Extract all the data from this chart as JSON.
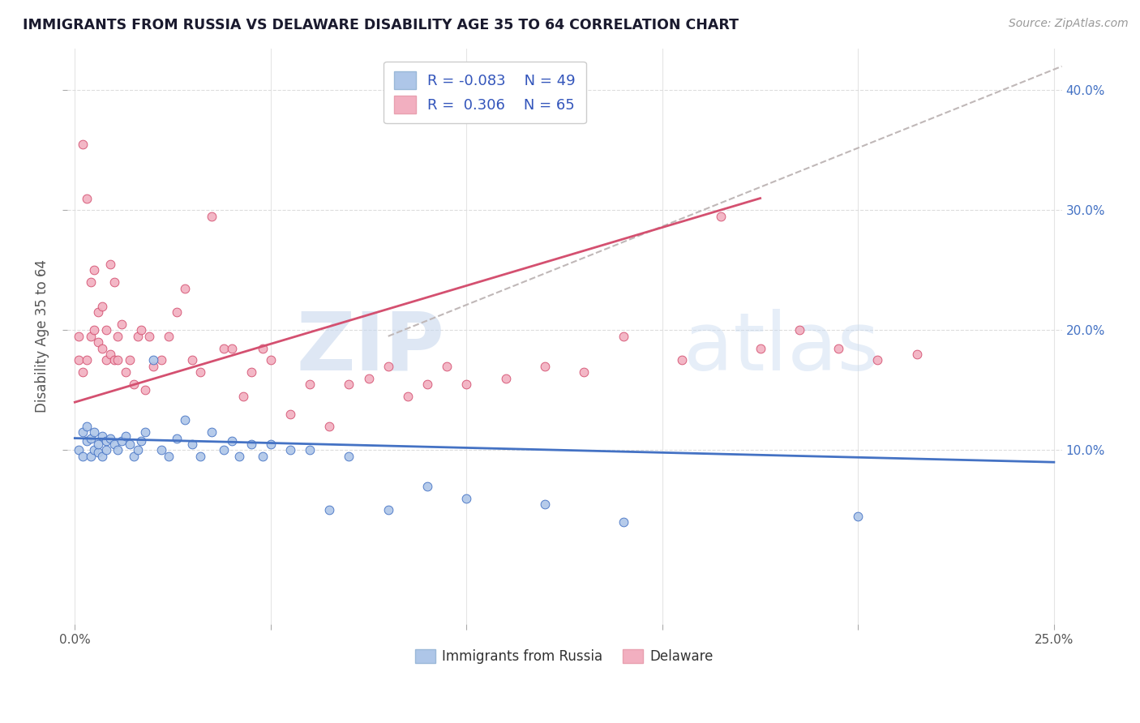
{
  "title": "IMMIGRANTS FROM RUSSIA VS DELAWARE DISABILITY AGE 35 TO 64 CORRELATION CHART",
  "source": "Source: ZipAtlas.com",
  "ylabel": "Disability Age 35 to 64",
  "xlim": [
    -0.002,
    0.252
  ],
  "ylim": [
    -0.045,
    0.435
  ],
  "xtick_positions": [
    0.0,
    0.05,
    0.1,
    0.15,
    0.2,
    0.25
  ],
  "xticklabels": [
    "0.0%",
    "",
    "",
    "",
    "",
    "25.0%"
  ],
  "ytick_positions": [
    0.1,
    0.2,
    0.3,
    0.4
  ],
  "yticklabels_right": [
    "10.0%",
    "20.0%",
    "30.0%",
    "40.0%"
  ],
  "color_blue": "#aec6e8",
  "color_pink": "#f2afc0",
  "line_blue": "#4472c4",
  "line_pink": "#d45070",
  "line_gray": "#c0b8b8",
  "text_color_title": "#1a1a2e",
  "text_color_source": "#999999",
  "legend_color": "#3355bb",
  "blue_scatter_x": [
    0.001,
    0.002,
    0.002,
    0.003,
    0.003,
    0.004,
    0.004,
    0.005,
    0.005,
    0.006,
    0.006,
    0.007,
    0.007,
    0.008,
    0.008,
    0.009,
    0.01,
    0.011,
    0.012,
    0.013,
    0.014,
    0.015,
    0.016,
    0.017,
    0.018,
    0.02,
    0.022,
    0.024,
    0.026,
    0.028,
    0.03,
    0.032,
    0.035,
    0.038,
    0.04,
    0.042,
    0.045,
    0.048,
    0.05,
    0.055,
    0.06,
    0.065,
    0.07,
    0.08,
    0.09,
    0.1,
    0.12,
    0.14,
    0.2
  ],
  "blue_scatter_y": [
    0.1,
    0.115,
    0.095,
    0.108,
    0.12,
    0.095,
    0.11,
    0.1,
    0.115,
    0.098,
    0.105,
    0.112,
    0.095,
    0.108,
    0.1,
    0.11,
    0.105,
    0.1,
    0.108,
    0.112,
    0.105,
    0.095,
    0.1,
    0.108,
    0.115,
    0.175,
    0.1,
    0.095,
    0.11,
    0.125,
    0.105,
    0.095,
    0.115,
    0.1,
    0.108,
    0.095,
    0.105,
    0.095,
    0.105,
    0.1,
    0.1,
    0.05,
    0.095,
    0.05,
    0.07,
    0.06,
    0.055,
    0.04,
    0.045
  ],
  "pink_scatter_x": [
    0.001,
    0.001,
    0.002,
    0.002,
    0.003,
    0.003,
    0.004,
    0.004,
    0.005,
    0.005,
    0.006,
    0.006,
    0.007,
    0.007,
    0.008,
    0.008,
    0.009,
    0.009,
    0.01,
    0.01,
    0.011,
    0.011,
    0.012,
    0.013,
    0.014,
    0.015,
    0.016,
    0.017,
    0.018,
    0.019,
    0.02,
    0.022,
    0.024,
    0.026,
    0.028,
    0.03,
    0.032,
    0.035,
    0.038,
    0.04,
    0.043,
    0.045,
    0.048,
    0.05,
    0.055,
    0.06,
    0.065,
    0.07,
    0.075,
    0.08,
    0.085,
    0.09,
    0.095,
    0.1,
    0.11,
    0.12,
    0.13,
    0.14,
    0.155,
    0.165,
    0.175,
    0.185,
    0.195,
    0.205,
    0.215
  ],
  "pink_scatter_y": [
    0.175,
    0.195,
    0.165,
    0.355,
    0.175,
    0.31,
    0.195,
    0.24,
    0.2,
    0.25,
    0.19,
    0.215,
    0.185,
    0.22,
    0.2,
    0.175,
    0.18,
    0.255,
    0.175,
    0.24,
    0.195,
    0.175,
    0.205,
    0.165,
    0.175,
    0.155,
    0.195,
    0.2,
    0.15,
    0.195,
    0.17,
    0.175,
    0.195,
    0.215,
    0.235,
    0.175,
    0.165,
    0.295,
    0.185,
    0.185,
    0.145,
    0.165,
    0.185,
    0.175,
    0.13,
    0.155,
    0.12,
    0.155,
    0.16,
    0.17,
    0.145,
    0.155,
    0.17,
    0.155,
    0.16,
    0.17,
    0.165,
    0.195,
    0.175,
    0.295,
    0.185,
    0.2,
    0.185,
    0.175,
    0.18
  ],
  "gray_line_x": [
    0.08,
    0.252
  ],
  "gray_line_y": [
    0.195,
    0.42
  ],
  "blue_line_x": [
    0.0,
    0.25
  ],
  "blue_line_y": [
    0.11,
    0.09
  ],
  "pink_line_x": [
    0.0,
    0.175
  ],
  "pink_line_y": [
    0.14,
    0.31
  ]
}
